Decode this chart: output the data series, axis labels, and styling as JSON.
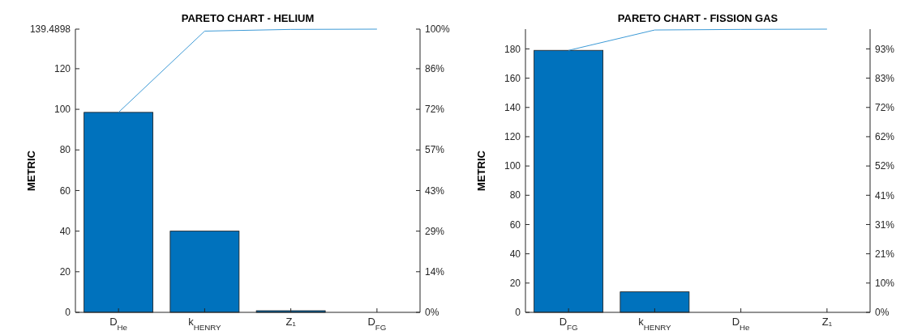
{
  "chart_data": [
    {
      "type": "bar",
      "title": "PARETO CHART - HELIUM",
      "ylabel": "METRIC",
      "categories": [
        "D$_{He}$",
        "k$_{HENRY}$",
        "Z₁",
        "D$_{FG}$"
      ],
      "series": [
        {
          "color": "#0072bd",
          "values": [
            98.5,
            40,
            0.8,
            null
          ]
        },
        {
          "type": "line",
          "color": "#3d9ad6",
          "axis": "y2",
          "values": [
            70.6,
            99.3,
            99.9,
            100
          ]
        }
      ],
      "ylim": [
        0,
        139.4898
      ],
      "yticks": [
        0,
        20,
        40,
        60,
        80,
        100,
        120,
        139.4898
      ],
      "y2lim": [
        0,
        100
      ],
      "y2ticks": [
        {
          "value": 0,
          "label": "0%"
        },
        {
          "value": 14.34,
          "label": "14%"
        },
        {
          "value": 28.67,
          "label": "29%"
        },
        {
          "value": 43.01,
          "label": "43%"
        },
        {
          "value": 57.35,
          "label": "57%"
        },
        {
          "value": 71.69,
          "label": "72%"
        },
        {
          "value": 86.02,
          "label": "86%"
        },
        {
          "value": 100,
          "label": "100%"
        }
      ]
    },
    {
      "type": "bar",
      "title": "PARETO CHART - FISSION GAS",
      "ylabel": "METRIC",
      "categories": [
        "D$_{FG}$",
        "k$_{HENRY}$",
        "D$_{He}$",
        "Z₁"
      ],
      "series": [
        {
          "color": "#0072bd",
          "values": [
            179,
            14,
            null,
            null
          ]
        },
        {
          "type": "line",
          "color": "#3d9ad6",
          "axis": "y2",
          "values": [
            92.5,
            99.7,
            99.9,
            100
          ]
        }
      ],
      "ylim": [
        0,
        193.5
      ],
      "yticks": [
        0,
        20,
        40,
        60,
        80,
        100,
        120,
        140,
        160,
        180
      ],
      "y2lim": [
        0,
        100
      ],
      "y2ticks": [
        {
          "value": 0,
          "label": "0%"
        },
        {
          "value": 10.34,
          "label": "10%"
        },
        {
          "value": 20.67,
          "label": "21%"
        },
        {
          "value": 31.01,
          "label": "31%"
        },
        {
          "value": 41.34,
          "label": "41%"
        },
        {
          "value": 51.68,
          "label": "52%"
        },
        {
          "value": 62.02,
          "label": "62%"
        },
        {
          "value": 72.35,
          "label": "72%"
        },
        {
          "value": 82.69,
          "label": "83%"
        },
        {
          "value": 93.02,
          "label": "93%"
        }
      ]
    }
  ]
}
